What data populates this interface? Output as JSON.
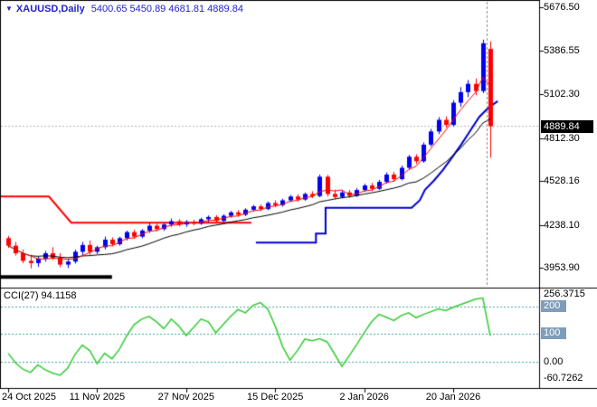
{
  "header": {
    "dropdown_icon": "▼",
    "symbol_timeframe": "XAUUSD,Daily",
    "ohlc_values": "5400.65 5450.89 4681.81 4889.84"
  },
  "main_chart": {
    "price_axis": {
      "labels": [
        {
          "text": "5676.50",
          "price": 5676.5
        },
        {
          "text": "5386.55",
          "price": 5386.55
        },
        {
          "text": "5102.30",
          "price": 5102.3
        },
        {
          "text": "4812.30",
          "price": 4812.3
        },
        {
          "text": "4528.16",
          "price": 4528.16
        },
        {
          "text": "4238.10",
          "price": 4238.1
        },
        {
          "text": "3953.90",
          "price": 3953.9
        }
      ],
      "current_price_label": "4889.84"
    }
  },
  "cci_panel": {
    "label": "CCI(27) 94.1158",
    "axis_max_label": "256.3715",
    "axis_zero_label": "0.00",
    "axis_min_label": "-60.7262",
    "level_200_label": "200",
    "level_100_label": "100",
    "axis_max_value": 256.3715,
    "axis_zero_value": 0,
    "axis_min_value": -60.7262
  },
  "time_axis": {
    "labels": [
      {
        "text": "24 Oct 2025",
        "index": 0
      },
      {
        "text": "11 Nov 2025",
        "index": 12
      },
      {
        "text": "27 Nov 2025",
        "index": 24
      },
      {
        "text": "15 Dec 2025",
        "index": 36
      },
      {
        "text": "2 Jan 2026",
        "index": 48
      },
      {
        "text": "20 Jan 2026",
        "index": 60
      }
    ]
  },
  "colors": {
    "background": "#ffffff",
    "frame": "#000000",
    "bull": "#0000ee",
    "bear": "#ff0000",
    "ma_fast": "#ff0000",
    "ma_slow": "#000000",
    "step_line": "#0000cc",
    "resistance_line": "#ff0000",
    "trend_bar": "#000000",
    "cci_line": "#33cc33",
    "level_line": "#3aa6a6",
    "bid_line": "#b5b5b5",
    "separator": "#8c8c8c",
    "title_text": "#2222cc",
    "axis_text": "#000000",
    "price_badge_bg": "#000000",
    "price_badge_fg": "#ffffff",
    "level_badge_bg": "#7f9db9",
    "level_badge_fg": "#ffffff"
  },
  "chart_data": [
    {
      "type": "candlestick",
      "title": "XAUUSD,Daily",
      "ohlc_display": {
        "open": 5400.65,
        "high": 5450.89,
        "low": 4681.81,
        "close": 4889.84
      },
      "price_range": {
        "min": 3823,
        "max": 5724
      },
      "candles": [
        [
          4150,
          4165,
          4085,
          4100
        ],
        [
          4100,
          4125,
          4035,
          4050
        ],
        [
          4050,
          4075,
          3985,
          4000
        ],
        [
          4000,
          4040,
          3950,
          3985
        ],
        [
          3985,
          4030,
          3960,
          4015
        ],
        [
          4015,
          4065,
          3995,
          4050
        ],
        [
          4050,
          4090,
          4005,
          4020
        ],
        [
          4020,
          4050,
          3958,
          3975
        ],
        [
          3975,
          4015,
          3952,
          3995
        ],
        [
          3995,
          4075,
          3982,
          4060
        ],
        [
          4060,
          4125,
          4035,
          4105
        ],
        [
          4105,
          4135,
          4040,
          4060
        ],
        [
          4060,
          4100,
          4045,
          4090
        ],
        [
          4090,
          4160,
          4075,
          4140
        ],
        [
          4140,
          4155,
          4095,
          4110
        ],
        [
          4110,
          4160,
          4100,
          4150
        ],
        [
          4150,
          4200,
          4135,
          4190
        ],
        [
          4190,
          4205,
          4145,
          4160
        ],
        [
          4160,
          4210,
          4150,
          4200
        ],
        [
          4200,
          4250,
          4185,
          4232
        ],
        [
          4232,
          4245,
          4195,
          4210
        ],
        [
          4210,
          4248,
          4198,
          4240
        ],
        [
          4240,
          4280,
          4225,
          4262
        ],
        [
          4262,
          4275,
          4228,
          4241
        ],
        [
          4241,
          4270,
          4225,
          4258
        ],
        [
          4258,
          4272,
          4235,
          4246
        ],
        [
          4246,
          4285,
          4238,
          4275
        ],
        [
          4275,
          4300,
          4255,
          4290
        ],
        [
          4290,
          4302,
          4252,
          4264
        ],
        [
          4264,
          4308,
          4255,
          4298
        ],
        [
          4298,
          4330,
          4285,
          4320
        ],
        [
          4320,
          4335,
          4292,
          4305
        ],
        [
          4305,
          4348,
          4295,
          4338
        ],
        [
          4338,
          4370,
          4326,
          4360
        ],
        [
          4360,
          4372,
          4328,
          4342
        ],
        [
          4342,
          4392,
          4335,
          4382
        ],
        [
          4382,
          4400,
          4355,
          4368
        ],
        [
          4368,
          4410,
          4358,
          4400
        ],
        [
          4400,
          4435,
          4388,
          4425
        ],
        [
          4425,
          4440,
          4392,
          4405
        ],
        [
          4405,
          4452,
          4398,
          4442
        ],
        [
          4442,
          4460,
          4415,
          4428
        ],
        [
          4428,
          4570,
          4420,
          4556
        ],
        [
          4556,
          4568,
          4425,
          4442
        ],
        [
          4442,
          4470,
          4408,
          4422
        ],
        [
          4422,
          4465,
          4412,
          4452
        ],
        [
          4452,
          4468,
          4418,
          4430
        ],
        [
          4430,
          4480,
          4422,
          4468
        ],
        [
          4468,
          4510,
          4455,
          4498
        ],
        [
          4498,
          4515,
          4460,
          4476
        ],
        [
          4476,
          4535,
          4468,
          4522
        ],
        [
          4522,
          4585,
          4510,
          4570
        ],
        [
          4570,
          4588,
          4524,
          4540
        ],
        [
          4540,
          4630,
          4532,
          4615
        ],
        [
          4615,
          4700,
          4605,
          4688
        ],
        [
          4688,
          4705,
          4640,
          4658
        ],
        [
          4658,
          4782,
          4648,
          4768
        ],
        [
          4768,
          4872,
          4755,
          4855
        ],
        [
          4855,
          4950,
          4838,
          4932
        ],
        [
          4932,
          4955,
          4880,
          4898
        ],
        [
          4898,
          5062,
          4888,
          5045
        ],
        [
          5045,
          5148,
          5018,
          5115
        ],
        [
          5115,
          5195,
          5082,
          5170
        ],
        [
          5170,
          5205,
          5095,
          5122
        ],
        [
          5122,
          5462,
          5108,
          5438
        ],
        [
          5400.65,
          5450.89,
          4681.81,
          4889.84
        ]
      ],
      "overlays": {
        "ma_fast_period": 4,
        "ma_slow_period": 13,
        "current_price": 4889.84,
        "separator_index": 64.55,
        "resistance_points": [
          [
            -1,
            4425
          ],
          [
            5.5,
            4425
          ],
          [
            8.5,
            4252
          ],
          [
            32.8,
            4252
          ]
        ],
        "step_points": [
          [
            33.4,
            4120
          ],
          [
            41.5,
            4120
          ],
          [
            41.5,
            4180
          ],
          [
            42.8,
            4180
          ],
          [
            42.8,
            4350
          ],
          [
            54.4,
            4350
          ],
          [
            55.5,
            4400
          ],
          [
            56.2,
            4470
          ],
          [
            57.4,
            4530
          ],
          [
            58.6,
            4600
          ],
          [
            59.8,
            4680
          ],
          [
            61.1,
            4770
          ],
          [
            62.3,
            4860
          ],
          [
            63.5,
            4950
          ],
          [
            64.7,
            5010
          ],
          [
            66,
            5055
          ]
        ],
        "trend_bar": {
          "from": -1,
          "to": 14,
          "price": 3893
        }
      }
    },
    {
      "type": "line",
      "name": "CCI(27)",
      "current_value": 94.1158,
      "range": {
        "min": -100,
        "max": 270
      },
      "levels": [
        200,
        100,
        0
      ],
      "axis_labels": [
        "256.3715",
        "200",
        "100",
        "0.00",
        "-60.7262"
      ],
      "values": [
        30,
        -5,
        -28,
        -40,
        -12,
        -30,
        -42,
        -50,
        -25,
        25,
        60,
        40,
        -8,
        30,
        10,
        45,
        95,
        135,
        155,
        165,
        145,
        120,
        155,
        130,
        95,
        125,
        155,
        145,
        105,
        135,
        165,
        190,
        178,
        205,
        215,
        192,
        130,
        55,
        5,
        40,
        82,
        76,
        83,
        72,
        28,
        -18,
        22,
        62,
        105,
        145,
        172,
        162,
        150,
        168,
        178,
        160,
        172,
        182,
        192,
        186,
        198,
        208,
        218,
        228,
        232,
        94.1158
      ]
    }
  ]
}
